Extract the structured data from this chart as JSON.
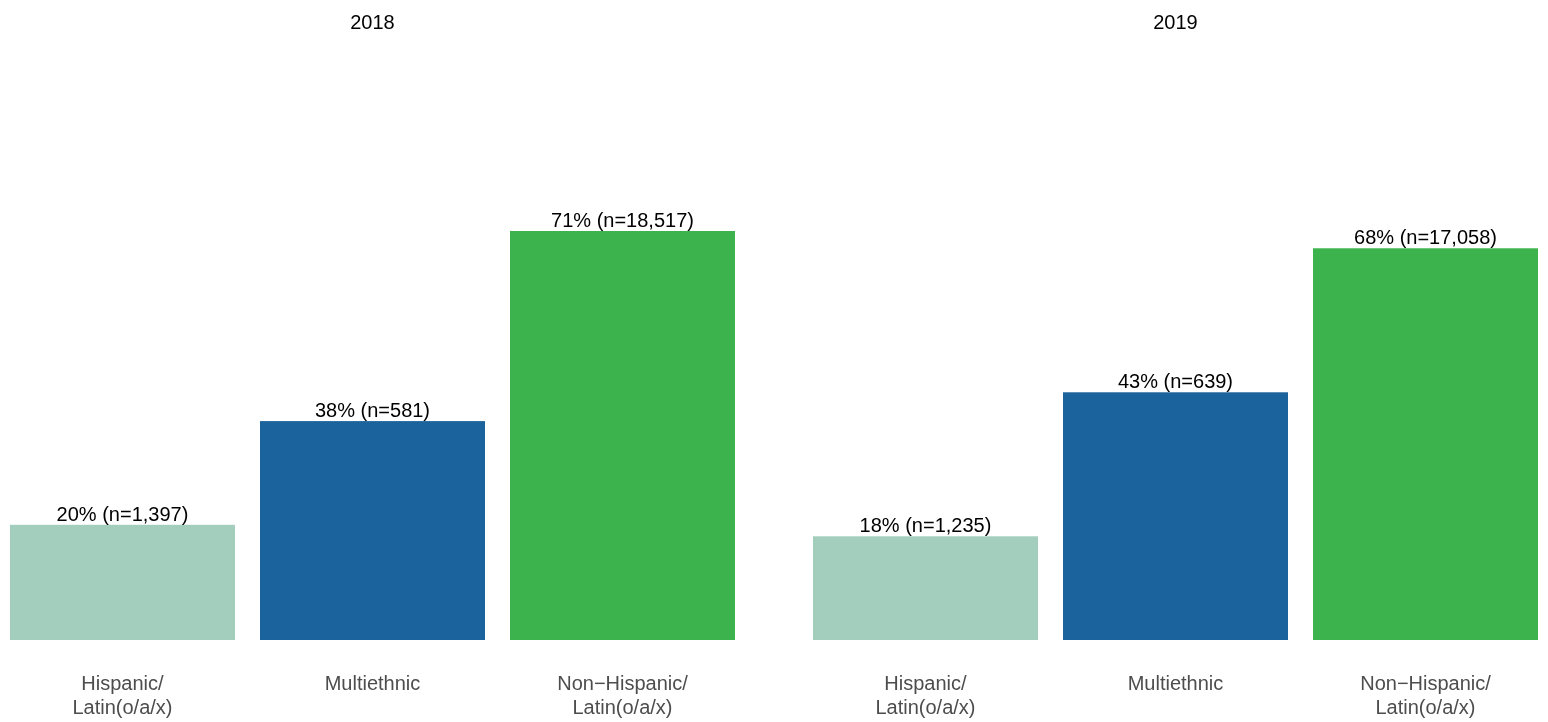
{
  "chart_data": [
    {
      "type": "bar",
      "title": "2018",
      "categories": [
        "Hispanic/\nLatin(o/a/x)",
        "Multiethnic",
        "Non−Hispanic/\nLatin(o/a/x)"
      ],
      "values": [
        20,
        38,
        71
      ],
      "colors": [
        "#a3cdbd",
        "#1a639c",
        "#3cb34c"
      ],
      "value_labels": [
        "20% (n=1,397)",
        "38% (n=581)",
        "71% (n=18,517)"
      ]
    },
    {
      "type": "bar",
      "title": "2019",
      "categories": [
        "Hispanic/\nLatin(o/a/x)",
        "Multiethnic",
        "Non−Hispanic/\nLatin(o/a/x)"
      ],
      "values": [
        18,
        43,
        68
      ],
      "colors": [
        "#a3cdbd",
        "#1a639c",
        "#3cb34c"
      ],
      "value_labels": [
        "18% (n=1,235)",
        "43% (n=639)",
        "68% (n=17,058)"
      ]
    }
  ]
}
